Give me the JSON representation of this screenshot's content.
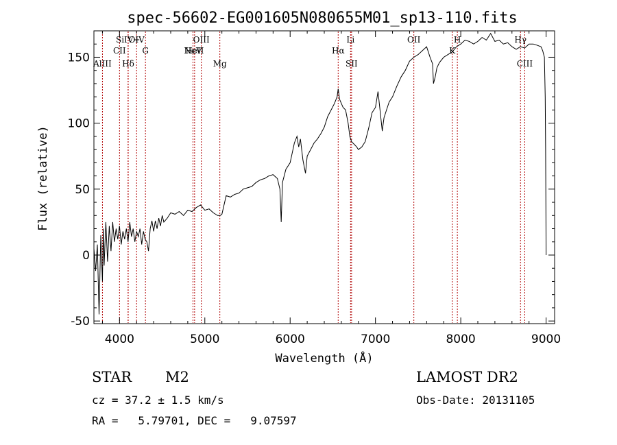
{
  "chart_data": {
    "type": "line",
    "title": "spec-56602-EG001605N080655M01_sp13-110.fits",
    "xlabel": "Wavelength (Å)",
    "ylabel": "Flux (relative)",
    "xlim": [
      3700,
      9100
    ],
    "ylim": [
      -52,
      170
    ],
    "xticks": [
      4000,
      5000,
      6000,
      7000,
      8000,
      9000
    ],
    "yticks": [
      -50,
      0,
      50,
      100,
      150
    ],
    "grid": false,
    "series": [
      {
        "values": [
          [
            3700,
            5
          ],
          [
            3720,
            -12
          ],
          [
            3740,
            8
          ],
          [
            3760,
            -45
          ],
          [
            3780,
            15
          ],
          [
            3800,
            -20
          ],
          [
            3810,
            20
          ],
          [
            3820,
            -8
          ],
          [
            3840,
            25
          ],
          [
            3860,
            -5
          ],
          [
            3880,
            22
          ],
          [
            3900,
            3
          ],
          [
            3920,
            25
          ],
          [
            3940,
            10
          ],
          [
            3960,
            20
          ],
          [
            3980,
            12
          ],
          [
            4000,
            22
          ],
          [
            4020,
            8
          ],
          [
            4040,
            18
          ],
          [
            4060,
            12
          ],
          [
            4080,
            20
          ],
          [
            4100,
            10
          ],
          [
            4120,
            25
          ],
          [
            4140,
            14
          ],
          [
            4160,
            20
          ],
          [
            4180,
            10
          ],
          [
            4200,
            18
          ],
          [
            4220,
            14
          ],
          [
            4240,
            20
          ],
          [
            4260,
            8
          ],
          [
            4280,
            18
          ],
          [
            4300,
            12
          ],
          [
            4320,
            10
          ],
          [
            4340,
            3
          ],
          [
            4360,
            20
          ],
          [
            4380,
            26
          ],
          [
            4400,
            18
          ],
          [
            4420,
            26
          ],
          [
            4440,
            20
          ],
          [
            4460,
            28
          ],
          [
            4480,
            22
          ],
          [
            4500,
            30
          ],
          [
            4520,
            25
          ],
          [
            4560,
            28
          ],
          [
            4600,
            32
          ],
          [
            4650,
            31
          ],
          [
            4700,
            33
          ],
          [
            4750,
            30
          ],
          [
            4800,
            34
          ],
          [
            4850,
            33
          ],
          [
            4900,
            36
          ],
          [
            4950,
            38
          ],
          [
            5000,
            34
          ],
          [
            5050,
            35
          ],
          [
            5100,
            32
          ],
          [
            5150,
            30
          ],
          [
            5180,
            30
          ],
          [
            5200,
            31
          ],
          [
            5250,
            45
          ],
          [
            5300,
            44
          ],
          [
            5350,
            46
          ],
          [
            5400,
            47
          ],
          [
            5450,
            50
          ],
          [
            5500,
            51
          ],
          [
            5550,
            52
          ],
          [
            5600,
            55
          ],
          [
            5650,
            57
          ],
          [
            5700,
            58
          ],
          [
            5750,
            60
          ],
          [
            5800,
            61
          ],
          [
            5850,
            58
          ],
          [
            5880,
            50
          ],
          [
            5895,
            25
          ],
          [
            5910,
            55
          ],
          [
            5950,
            65
          ],
          [
            6000,
            70
          ],
          [
            6050,
            85
          ],
          [
            6080,
            90
          ],
          [
            6100,
            82
          ],
          [
            6120,
            88
          ],
          [
            6150,
            72
          ],
          [
            6180,
            62
          ],
          [
            6200,
            75
          ],
          [
            6240,
            80
          ],
          [
            6280,
            85
          ],
          [
            6320,
            88
          ],
          [
            6360,
            92
          ],
          [
            6400,
            97
          ],
          [
            6440,
            105
          ],
          [
            6480,
            110
          ],
          [
            6520,
            115
          ],
          [
            6550,
            120
          ],
          [
            6563,
            126
          ],
          [
            6580,
            118
          ],
          [
            6600,
            115
          ],
          [
            6620,
            112
          ],
          [
            6650,
            110
          ],
          [
            6680,
            100
          ],
          [
            6700,
            90
          ],
          [
            6720,
            86
          ],
          [
            6750,
            84
          ],
          [
            6780,
            82
          ],
          [
            6800,
            80
          ],
          [
            6840,
            82
          ],
          [
            6880,
            86
          ],
          [
            6920,
            96
          ],
          [
            6960,
            108
          ],
          [
            7000,
            112
          ],
          [
            7030,
            124
          ],
          [
            7050,
            112
          ],
          [
            7080,
            94
          ],
          [
            7100,
            104
          ],
          [
            7130,
            110
          ],
          [
            7160,
            116
          ],
          [
            7200,
            120
          ],
          [
            7250,
            128
          ],
          [
            7300,
            135
          ],
          [
            7350,
            140
          ],
          [
            7400,
            147
          ],
          [
            7450,
            150
          ],
          [
            7500,
            152
          ],
          [
            7550,
            155
          ],
          [
            7600,
            158
          ],
          [
            7640,
            150
          ],
          [
            7670,
            145
          ],
          [
            7680,
            130
          ],
          [
            7700,
            135
          ],
          [
            7720,
            142
          ],
          [
            7750,
            146
          ],
          [
            7800,
            150
          ],
          [
            7850,
            152
          ],
          [
            7900,
            154
          ],
          [
            7950,
            158
          ],
          [
            8000,
            160
          ],
          [
            8050,
            163
          ],
          [
            8100,
            162
          ],
          [
            8150,
            160
          ],
          [
            8200,
            162
          ],
          [
            8250,
            165
          ],
          [
            8300,
            163
          ],
          [
            8350,
            168
          ],
          [
            8400,
            162
          ],
          [
            8450,
            163
          ],
          [
            8500,
            160
          ],
          [
            8550,
            161
          ],
          [
            8600,
            158
          ],
          [
            8650,
            156
          ],
          [
            8700,
            158
          ],
          [
            8750,
            157
          ],
          [
            8800,
            160
          ],
          [
            8850,
            160
          ],
          [
            8900,
            159
          ],
          [
            8940,
            158
          ],
          [
            8960,
            155
          ],
          [
            8980,
            150
          ],
          [
            8990,
            120
          ],
          [
            8995,
            80
          ],
          [
            9000,
            0
          ]
        ]
      }
    ],
    "annotations": [
      {
        "label": "AlIII",
        "x": 3800,
        "row": 3
      },
      {
        "label": "CII",
        "x": 4000,
        "row": 2
      },
      {
        "label": "SiIV+",
        "x": 4100,
        "row": 1
      },
      {
        "label": "Hδ",
        "x": 4102,
        "row": 3
      },
      {
        "label": "OIV",
        "x": 4200,
        "row": 1
      },
      {
        "label": "G",
        "x": 4304,
        "row": 2
      },
      {
        "label": "NeV",
        "x": 4861,
        "row": 2
      },
      {
        "label": "HeII",
        "x": 4880,
        "row": 2
      },
      {
        "label": "OIII",
        "x": 4959,
        "row": 1
      },
      {
        "label": "Mg",
        "x": 5176,
        "row": 3
      },
      {
        "label": "Hα",
        "x": 6563,
        "row": 2
      },
      {
        "label": "Li",
        "x": 6708,
        "row": 1
      },
      {
        "label": "SII",
        "x": 6720,
        "row": 3
      },
      {
        "label": "OII",
        "x": 7450,
        "row": 1
      },
      {
        "label": "K",
        "x": 7900,
        "row": 2
      },
      {
        "label": "H",
        "x": 7960,
        "row": 1
      },
      {
        "label": "Hγ",
        "x": 8700,
        "row": 1
      },
      {
        "label": "CIII",
        "x": 8750,
        "row": 3
      }
    ]
  },
  "info": {
    "object_type": "STAR",
    "subclass": "M2",
    "survey": "LAMOST DR2",
    "cz": "cz = 37.2 ± 1.5 km/s",
    "obs_date": "Obs-Date: 20131105",
    "coords": "RA =   5.79701, DEC =   9.07597"
  }
}
